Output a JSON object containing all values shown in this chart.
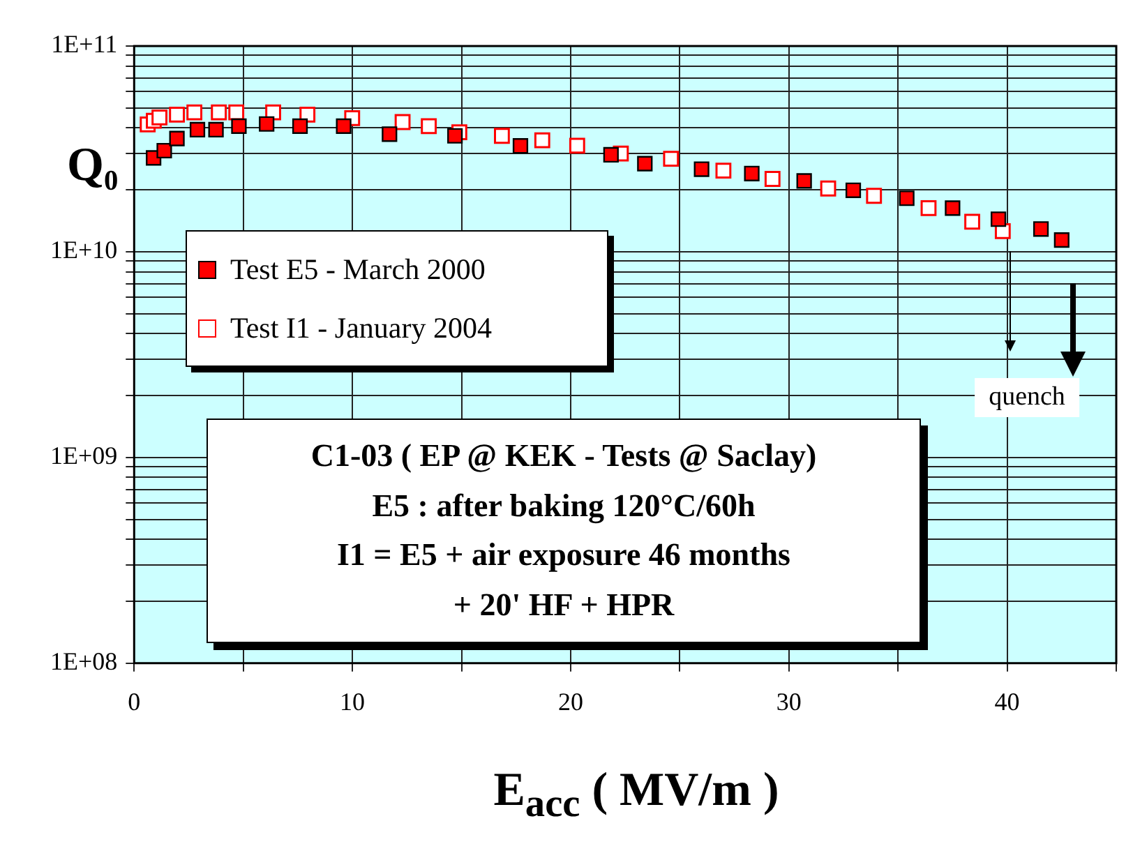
{
  "chart_data": {
    "type": "scatter",
    "xlabel": "E$_{acc}$ ( MV/m )",
    "ylabel": "Q₀",
    "series": [
      {
        "name": "Test E5 - March 2000",
        "color": "#ff0000",
        "x": [
          0.89,
          1.38,
          1.96,
          2.9,
          3.75,
          4.8,
          6.07,
          7.6,
          9.6,
          11.7,
          14.7,
          17.7,
          21.85,
          23.4,
          26.0,
          28.3,
          30.7,
          32.95,
          35.4,
          37.5,
          39.6,
          41.55,
          42.5
        ],
        "values": [
          28600000000.0,
          31000000000.0,
          35500000000.0,
          39200000000.0,
          39200000000.0,
          40800000000.0,
          41800000000.0,
          40800000000.0,
          40800000000.0,
          37300000000.0,
          36600000000.0,
          32700000000.0,
          29600000000.0,
          26800000000.0,
          25200000000.0,
          24000000000.0,
          22100000000.0,
          19900000000.0,
          18200000000.0,
          16300000000.0,
          14400000000.0,
          12900000000.0,
          11400000000.0
        ]
      },
      {
        "name": "Test I1 - January 2004",
        "color": "#ff0000",
        "x": [
          0.62,
          0.9,
          1.16,
          1.96,
          2.76,
          3.88,
          4.68,
          6.37,
          7.94,
          9.99,
          12.3,
          13.5,
          14.9,
          16.85,
          18.7,
          20.3,
          22.3,
          24.6,
          27.0,
          29.25,
          31.8,
          33.9,
          36.4,
          38.4,
          39.8
        ],
        "values": [
          41600000000.0,
          43300000000.0,
          45000000000.0,
          46400000000.0,
          47600000000.0,
          47600000000.0,
          47600000000.0,
          47600000000.0,
          46400000000.0,
          44600000000.0,
          42700000000.0,
          40800000000.0,
          38100000000.0,
          36600000000.0,
          34800000000.0,
          32800000000.0,
          30000000000.0,
          28300000000.0,
          24800000000.0,
          22600000000.0,
          20300000000.0,
          18700000000.0,
          16300000000.0,
          14000000000.0,
          12600000000.0
        ]
      }
    ],
    "xlim": [
      0,
      45
    ],
    "xticks": [
      0,
      {
        "value": 5,
        "label": null
      },
      10,
      {
        "value": 15,
        "label": null
      },
      20,
      {
        "value": 25,
        "label": null
      },
      30,
      {
        "value": 35,
        "label": null
      },
      40,
      {
        "value": 45,
        "label": null
      }
    ],
    "ylim": [
      100000000.0,
      100000000000.0
    ],
    "yticks": [
      {
        "value": 100000000.0,
        "label": "1E+08"
      },
      {
        "value": 200000000.0,
        "label": null
      },
      {
        "value": 300000000.0,
        "label": null
      },
      {
        "value": 400000000.0,
        "label": null
      },
      {
        "value": 500000000.0,
        "label": null
      },
      {
        "value": 600000000.0,
        "label": null
      },
      {
        "value": 700000000.0,
        "label": null
      },
      {
        "value": 800000000.0,
        "label": null
      },
      {
        "value": 900000000.0,
        "label": null
      },
      {
        "value": 1000000000.0,
        "label": "1E+09"
      },
      {
        "value": 2000000000.0,
        "label": null
      },
      {
        "value": 3000000000.0,
        "label": null
      },
      {
        "value": 4000000000.0,
        "label": null
      },
      {
        "value": 5000000000.0,
        "label": null
      },
      {
        "value": 6000000000.0,
        "label": null
      },
      {
        "value": 7000000000.0,
        "label": null
      },
      {
        "value": 8000000000.0,
        "label": null
      },
      {
        "value": 9000000000.0,
        "label": null
      },
      {
        "value": 10000000000.0,
        "label": "1E+10"
      },
      {
        "value": 20000000000.0,
        "label": null
      },
      {
        "value": 30000000000.0,
        "label": null
      },
      {
        "value": 40000000000.0,
        "label": null
      },
      {
        "value": 50000000000.0,
        "label": null
      },
      {
        "value": 60000000000.0,
        "label": null
      },
      {
        "value": 70000000000.0,
        "label": null
      },
      {
        "value": 80000000000.0,
        "label": null
      },
      {
        "value": 90000000000.0,
        "label": null
      },
      {
        "value": 100000000000.0,
        "label": "1E+11"
      }
    ],
    "log": "y",
    "grid": true,
    "legend": "top left",
    "marker": "square",
    "annotations": [
      "quench",
      "C1-03 ( EP @ KEK - Tests @ Saclay)",
      "E5 : after baking 120°C/60h",
      "I1 = E5 + air exposure 46 months",
      "+ 20' HF + HPR"
    ]
  }
}
